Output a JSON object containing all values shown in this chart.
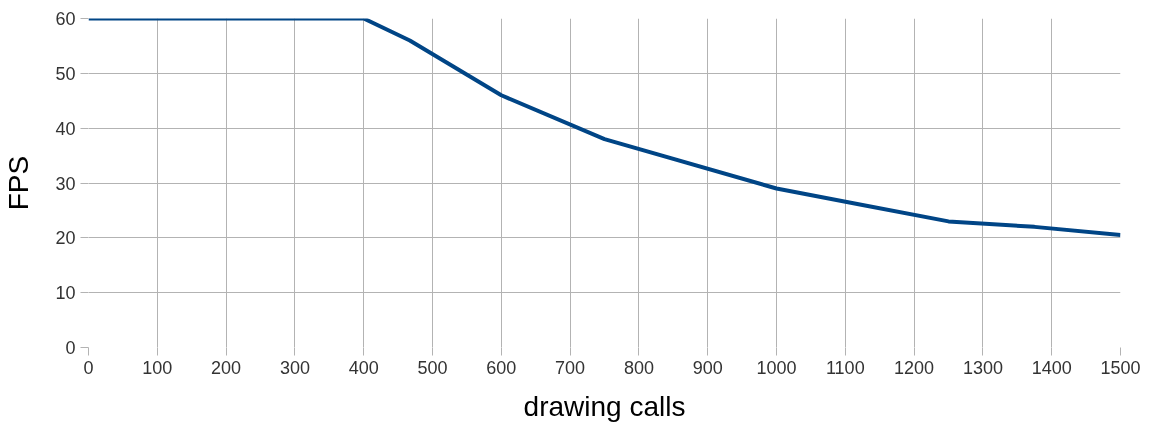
{
  "chart_data": {
    "type": "line",
    "xlabel": "drawing calls",
    "ylabel": "FPS",
    "x": [
      0,
      400,
      467,
      600,
      750,
      1000,
      1125,
      1250,
      1375,
      1500
    ],
    "series": [
      {
        "color": "#004586",
        "values": [
          60,
          60,
          56,
          46,
          38,
          29,
          26,
          23,
          22,
          20.5
        ]
      }
    ],
    "xlim": [
      0,
      1500
    ],
    "ylim": [
      0,
      60
    ],
    "xticks": [
      0,
      100,
      200,
      300,
      400,
      500,
      600,
      700,
      800,
      900,
      1000,
      1100,
      1200,
      1300,
      1400,
      1500
    ],
    "yticks": [
      0,
      10,
      20,
      30,
      40,
      50,
      60
    ],
    "grid": true,
    "line_style": "solid"
  }
}
